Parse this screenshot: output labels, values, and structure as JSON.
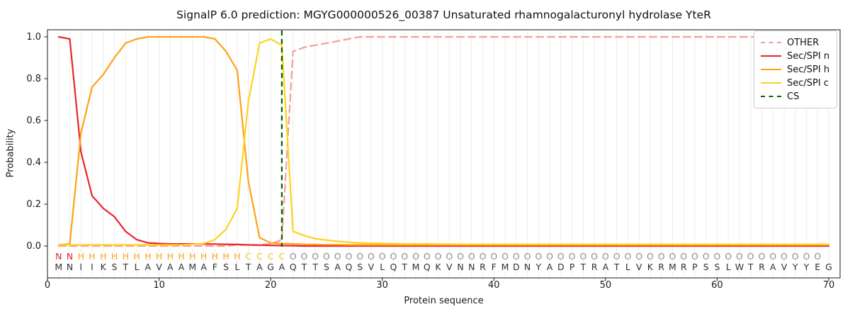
{
  "title": "SignalP 6.0 prediction: MGYG000000526_00387 Unsaturated rhamnogalacturonyl hydrolase YteR",
  "axes": {
    "xlabel": "Protein sequence",
    "ylabel": "Probability",
    "xticks": [
      "0",
      "10",
      "20",
      "30",
      "40",
      "50",
      "60",
      "70"
    ],
    "yticks": [
      "1.0",
      "0.8",
      "0.6",
      "0.4",
      "0.2",
      "0.0"
    ]
  },
  "legend": {
    "position": "upper right",
    "items": [
      {
        "label": "OTHER",
        "color": "#f29f9c",
        "dashed": true
      },
      {
        "label": "Sec/SPI n",
        "color": "#e9252c",
        "dashed": false
      },
      {
        "label": "Sec/SPI h",
        "color": "#ffa215",
        "dashed": false
      },
      {
        "label": "Sec/SPI c",
        "color": "#ffd21d",
        "dashed": false
      },
      {
        "label": "CS",
        "color": "#006400",
        "dashed": true
      }
    ]
  },
  "colors": {
    "other": "#f29f9c",
    "sec_spi_n": "#e9252c",
    "sec_spi_h": "#ffa215",
    "sec_spi_c": "#ffd21d",
    "cs": "#006400",
    "grid": "#ededed",
    "spine": "#1a1a1a",
    "sequence_text": "#333333",
    "region_letter_colors": {
      "N": "#e9252c",
      "H": "#ffa215",
      "C": "#f2c41d",
      "O": "#8c8c8c"
    }
  },
  "chart_data": {
    "type": "line",
    "title": "SignalP 6.0 prediction: MGYG000000526_00387 Unsaturated rhamnogalacturonyl hydrolase YteR",
    "xlabel": "Protein sequence",
    "ylabel": "Probability",
    "xlim": [
      0,
      71
    ],
    "ylim": [
      -0.15,
      1.04
    ],
    "grid": "vertical line per residue, light gray",
    "legend_position": "upper right",
    "x": [
      1,
      2,
      3,
      4,
      5,
      6,
      7,
      8,
      9,
      10,
      11,
      12,
      13,
      14,
      15,
      16,
      17,
      18,
      19,
      20,
      21,
      22,
      23,
      24,
      25,
      26,
      27,
      28,
      29,
      30,
      31,
      32,
      33,
      34,
      35,
      36,
      37,
      38,
      39,
      40,
      41,
      42,
      43,
      44,
      45,
      46,
      47,
      48,
      49,
      50,
      51,
      52,
      53,
      54,
      55,
      56,
      57,
      58,
      59,
      60,
      61,
      62,
      63,
      64,
      65,
      66,
      67,
      68,
      69,
      70
    ],
    "series": [
      {
        "name": "OTHER",
        "style": "dashed",
        "color": "#f29f9c",
        "values": [
          0,
          0,
          0,
          0,
          0,
          0,
          0,
          0,
          0,
          0,
          0,
          0,
          0,
          0,
          0,
          0,
          0.005,
          0.005,
          0.005,
          0.01,
          0.03,
          0.93,
          0.95,
          0.96,
          0.97,
          0.98,
          0.99,
          1,
          1,
          1,
          1,
          1,
          1,
          1,
          1,
          1,
          1,
          1,
          1,
          1,
          1,
          1,
          1,
          1,
          1,
          1,
          1,
          1,
          1,
          1,
          1,
          1,
          1,
          1,
          1,
          1,
          1,
          1,
          1,
          1,
          1,
          1,
          1,
          1,
          1,
          1,
          1,
          1,
          1,
          1
        ]
      },
      {
        "name": "Sec/SPI n",
        "style": "solid",
        "color": "#e9252c",
        "values": [
          1,
          0.99,
          0.45,
          0.24,
          0.18,
          0.14,
          0.07,
          0.03,
          0.015,
          0.012,
          0.01,
          0.01,
          0.01,
          0.01,
          0.009,
          0.008,
          0.007,
          0.005,
          0.004,
          0.003,
          0.002,
          0.001,
          0,
          0,
          0,
          0,
          0,
          0,
          0,
          0,
          0,
          0,
          0,
          0,
          0,
          0,
          0,
          0,
          0,
          0,
          0,
          0,
          0,
          0,
          0,
          0,
          0,
          0,
          0,
          0,
          0,
          0,
          0,
          0,
          0,
          0,
          0,
          0,
          0,
          0,
          0,
          0,
          0,
          0,
          0,
          0,
          0,
          0,
          0,
          0
        ]
      },
      {
        "name": "Sec/SPI h",
        "style": "solid",
        "color": "#ffa215",
        "values": [
          0.005,
          0.01,
          0.54,
          0.76,
          0.82,
          0.9,
          0.97,
          0.99,
          1,
          1,
          1,
          1,
          1,
          1,
          0.99,
          0.93,
          0.84,
          0.31,
          0.04,
          0.015,
          0.012,
          0.01,
          0.008,
          0.007,
          0.006,
          0.006,
          0.005,
          0.005,
          0.005,
          0.005,
          0.005,
          0.005,
          0.005,
          0.005,
          0.005,
          0.005,
          0.005,
          0.005,
          0.005,
          0.005,
          0.005,
          0.005,
          0.005,
          0.005,
          0.005,
          0.005,
          0.005,
          0.005,
          0.005,
          0.005,
          0.005,
          0.005,
          0.005,
          0.005,
          0.005,
          0.005,
          0.005,
          0.005,
          0.005,
          0.005,
          0.005,
          0.005,
          0.005,
          0.005,
          0.005,
          0.005,
          0.005,
          0.005,
          0.005,
          0.005
        ]
      },
      {
        "name": "Sec/SPI c",
        "style": "solid",
        "color": "#ffd21d",
        "values": [
          0.005,
          0.005,
          0.005,
          0.005,
          0.005,
          0.005,
          0.005,
          0.005,
          0.005,
          0.005,
          0.005,
          0.005,
          0.008,
          0.012,
          0.03,
          0.08,
          0.18,
          0.69,
          0.97,
          0.99,
          0.96,
          0.07,
          0.05,
          0.035,
          0.028,
          0.022,
          0.018,
          0.015,
          0.013,
          0.012,
          0.011,
          0.01,
          0.01,
          0.01,
          0.009,
          0.009,
          0.008,
          0.008,
          0.008,
          0.008,
          0.008,
          0.008,
          0.008,
          0.008,
          0.008,
          0.008,
          0.008,
          0.008,
          0.008,
          0.008,
          0.008,
          0.008,
          0.008,
          0.008,
          0.008,
          0.008,
          0.008,
          0.008,
          0.008,
          0.008,
          0.008,
          0.008,
          0.008,
          0.008,
          0.008,
          0.008,
          0.008,
          0.008,
          0.008,
          0.008
        ]
      }
    ],
    "cs_line": {
      "name": "CS",
      "x": 21,
      "style": "dashed",
      "color": "#006400"
    },
    "regions": {
      "n_region": [
        1,
        2
      ],
      "h_region": [
        3,
        17
      ],
      "c_region": [
        18,
        21
      ],
      "other_region": [
        22,
        70
      ]
    },
    "region_labels": "NNHHHHHHHHHHHHHHHCCCCOOOOOOOOOOOOOOOOOOOOOOOOOOOOOOOOOOOOOOOOOOOOOOOO",
    "sequence": "MNIIKSTLAVAAMAFSLTAGAQTTSAQSVLQTMQKVNNRFMDNYADPTRATLVKRMRPSSLWTRAVYYEG"
  }
}
